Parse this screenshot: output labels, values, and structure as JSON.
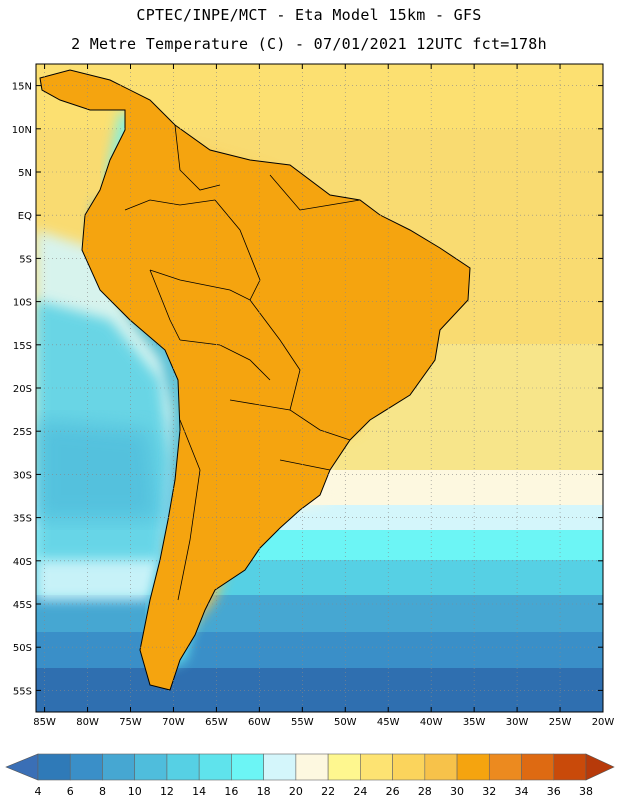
{
  "title": {
    "line1": "CPTEC/INPE/MCT -  Eta Model 15km - GFS",
    "line2": "2 Metre Temperature (C) - 07/01/2021 12UTC fct=178h"
  },
  "map": {
    "lat_labels": [
      "15N",
      "10N",
      "5N",
      "EQ",
      "5S",
      "10S",
      "15S",
      "20S",
      "25S",
      "30S",
      "35S",
      "40S",
      "45S",
      "50S",
      "55S"
    ],
    "lon_labels": [
      "85W",
      "80W",
      "75W",
      "70W",
      "65W",
      "60W",
      "55W",
      "50W",
      "45W",
      "40W",
      "35W",
      "30W",
      "25W",
      "20W"
    ],
    "lat_range": [
      17.5,
      -57.5
    ],
    "lon_range": [
      -86,
      -20
    ],
    "grid": true,
    "ocean_background_color": "#f7e58a"
  },
  "colorbar": {
    "labels": [
      "4",
      "6",
      "8",
      "10",
      "12",
      "14",
      "16",
      "18",
      "20",
      "22",
      "24",
      "26",
      "28",
      "30",
      "32",
      "34",
      "36",
      "38"
    ],
    "colors": [
      "#3a6fb6",
      "#2f7ab8",
      "#3a8fc8",
      "#46a7d2",
      "#4fbddc",
      "#56d0e4",
      "#5fe3ec",
      "#6cf5f5",
      "#d4f6fb",
      "#fdf8e0",
      "#fef78f",
      "#fde372",
      "#fbd45c",
      "#f7c24a",
      "#f5a40f",
      "#ec8a1f",
      "#de6a12",
      "#c94a0a",
      "#b73a0a"
    ]
  }
}
